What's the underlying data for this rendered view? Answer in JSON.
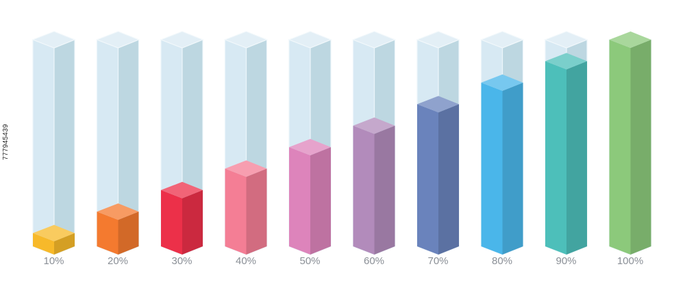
{
  "chart_data": {
    "type": "bar",
    "categories": [
      "10%",
      "20%",
      "30%",
      "40%",
      "50%",
      "60%",
      "70%",
      "80%",
      "90%",
      "100%"
    ],
    "values": [
      10,
      20,
      30,
      40,
      50,
      60,
      70,
      80,
      90,
      100
    ],
    "ylim": [
      0,
      100
    ],
    "colors": [
      "#f7b92a",
      "#f47a2f",
      "#ec3049",
      "#f47e95",
      "#dd84bb",
      "#b28bbb",
      "#6a83bc",
      "#4ab6ea",
      "#4dbfba",
      "#8cc97b"
    ],
    "grid": false,
    "legend": "none"
  },
  "stock_id": "777945439"
}
